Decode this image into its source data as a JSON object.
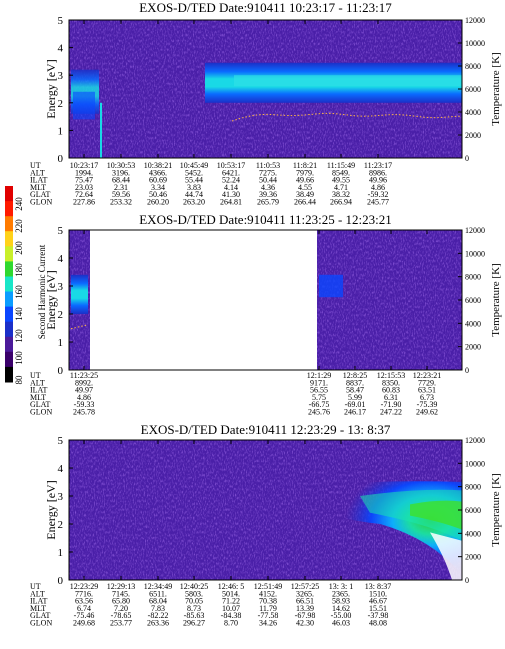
{
  "colorbar": {
    "label": "Second Harmonic Current",
    "ticks": [
      "80",
      "100",
      "120",
      "140",
      "160",
      "180",
      "200",
      "220",
      "240"
    ],
    "colors": [
      "#000000",
      "#3a006a",
      "#4b1a9a",
      "#1b2fc8",
      "#0a46ff",
      "#0a9dff",
      "#19e6c8",
      "#2fd82f",
      "#c9ef2a",
      "#ffd21a",
      "#ff7b00",
      "#ff1a00",
      "#e00000"
    ]
  },
  "chart_data": [
    {
      "type": "heatmap",
      "title": "EXOS-D/TED   Date:910411   10:23:17 - 11:23:17",
      "ylabel": "Energy [eV]",
      "y2label": "Temperature [K]",
      "ylim": [
        0,
        5
      ],
      "y2lim": [
        0,
        12000
      ],
      "yticks": [
        "0",
        "1",
        "2",
        "3",
        "4",
        "5"
      ],
      "y2ticks": [
        "0",
        "2000",
        "4000",
        "6000",
        "8000",
        "10000",
        "12000"
      ],
      "xlabels": [
        "UT",
        "ALT",
        "ILAT",
        "MLT",
        "GLAT",
        "GLON"
      ],
      "columns": [
        [
          "10:23:17",
          "1994.",
          "75.47",
          "23.03",
          "72.64",
          "227.86"
        ],
        [
          "10:30:53",
          "3196.",
          "68.44",
          "2.31",
          "59.56",
          "253.32"
        ],
        [
          "10:38:21",
          "4366.",
          "60.69",
          "3.34",
          "50.46",
          "260.20"
        ],
        [
          "10:45:49",
          "5452.",
          "55.44",
          "3.83",
          "44.74",
          "263.20"
        ],
        [
          "10:53:17",
          "6421.",
          "52.24",
          "4.14",
          "41.30",
          "264.81"
        ],
        [
          "11:0:53",
          "7275.",
          "50.44",
          "4.36",
          "39.36",
          "265.79"
        ],
        [
          "11:8:21",
          "7979.",
          "49.66",
          "4.55",
          "38.49",
          "266.44"
        ],
        [
          "11:15:49",
          "8549.",
          "49.55",
          "4.71",
          "38.32",
          "266.94"
        ],
        [
          "11:23:17",
          "8986.",
          "49.96",
          "4.86",
          "-59.32",
          "245.77"
        ]
      ]
    },
    {
      "type": "heatmap",
      "title": "EXOS-D/TED   Date:910411   11:23:25 - 12:23:21",
      "ylabel": "Energy [eV]",
      "y2label": "Temperature [K]",
      "ylim": [
        0,
        5
      ],
      "y2lim": [
        0,
        12000
      ],
      "yticks": [
        "0",
        "1",
        "2",
        "3",
        "4",
        "5"
      ],
      "y2ticks": [
        "0",
        "2000",
        "4000",
        "6000",
        "8000",
        "10000",
        "12000"
      ],
      "xlabels": [
        "UT",
        "ALT",
        "ILAT",
        "MLT",
        "GLAT",
        "GLON"
      ],
      "columns": [
        [
          "11:23:25",
          "8992.",
          "49.97",
          "4.86",
          "-59.33",
          "245.78"
        ],
        [
          "12:1:29",
          "9171.",
          "56.55",
          "5.75",
          "-66.75",
          "245.76"
        ],
        [
          "12:8:25",
          "8837.",
          "58.47",
          "5.99",
          "-69.01",
          "246.17"
        ],
        [
          "12:15:53",
          "8350.",
          "60.83",
          "6.31",
          "-71.90",
          "247.22"
        ],
        [
          "12:23:21",
          "7729.",
          "63.51",
          "6.73",
          "-75.39",
          "249.62"
        ]
      ]
    },
    {
      "type": "heatmap",
      "title": "EXOS-D/TED   Date:910411   12:23:29 - 13: 8:37",
      "ylabel": "Energy [eV]",
      "y2label": "Temperature [K]",
      "ylim": [
        0,
        5
      ],
      "y2lim": [
        0,
        12000
      ],
      "yticks": [
        "0",
        "1",
        "2",
        "3",
        "4",
        "5"
      ],
      "y2ticks": [
        "0",
        "2000",
        "4000",
        "6000",
        "8000",
        "10000",
        "12000"
      ],
      "xlabels": [
        "UT",
        "ALT",
        "ILAT",
        "MLT",
        "GLAT",
        "GLON"
      ],
      "columns": [
        [
          "12:23:29",
          "7716.",
          "63.56",
          "6.74",
          "-75.46",
          "249.68"
        ],
        [
          "12:29:13",
          "7145.",
          "65.80",
          "7.20",
          "-78.65",
          "253.77"
        ],
        [
          "12:34:49",
          "6511.",
          "68.04",
          "7.83",
          "-82.22",
          "263.36"
        ],
        [
          "12:40:25",
          "5803.",
          "70.05",
          "8.73",
          "-85.63",
          "296.27"
        ],
        [
          "12:46: 5",
          "5014.",
          "71.22",
          "10.07",
          "-84.38",
          "8.70"
        ],
        [
          "12:51:49",
          "4152.",
          "70.38",
          "11.79",
          "-77.58",
          "34.26"
        ],
        [
          "12:57:25",
          "3265.",
          "66.51",
          "13.39",
          "-67.98",
          "42.30"
        ],
        [
          "13: 3: 1",
          "2365.",
          "58.93",
          "14.62",
          "-55.00",
          "46.03"
        ],
        [
          "13: 8:37",
          "1510.",
          "46.67",
          "15.51",
          "-37.98",
          "48.08"
        ]
      ]
    }
  ]
}
